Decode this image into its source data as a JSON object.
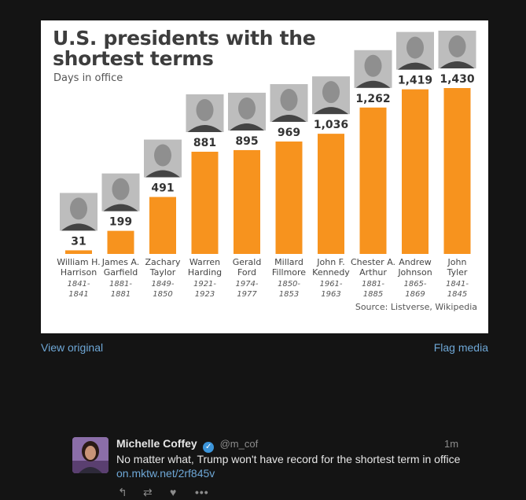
{
  "media": {
    "view_original": "View original",
    "flag_media": "Flag media"
  },
  "chart_data": {
    "type": "bar",
    "title": "U.S. presidents with the shortest terms",
    "subtitle": "Days in office",
    "source": "Source: Listverse, Wikipedia",
    "bar_color": "#f7931e",
    "categories": [
      {
        "name1": "William H.",
        "name2": "Harrison",
        "years1": "1841-",
        "years2": "1841"
      },
      {
        "name1": "James A.",
        "name2": "Garfield",
        "years1": "1881-",
        "years2": "1881"
      },
      {
        "name1": "Zachary",
        "name2": "Taylor",
        "years1": "1849-",
        "years2": "1850"
      },
      {
        "name1": "Warren",
        "name2": "Harding",
        "years1": "1921-",
        "years2": "1923"
      },
      {
        "name1": "Gerald",
        "name2": "Ford",
        "years1": "1974-",
        "years2": "1977"
      },
      {
        "name1": "Millard",
        "name2": "Fillmore",
        "years1": "1850-",
        "years2": "1853"
      },
      {
        "name1": "John F.",
        "name2": "Kennedy",
        "years1": "1961-",
        "years2": "1963"
      },
      {
        "name1": "Chester A.",
        "name2": "Arthur",
        "years1": "1881-",
        "years2": "1885"
      },
      {
        "name1": "Andrew",
        "name2": "Johnson",
        "years1": "1865-",
        "years2": "1869"
      },
      {
        "name1": "John",
        "name2": "Tyler",
        "years1": "1841-",
        "years2": "1845"
      }
    ],
    "values": [
      31,
      199,
      491,
      881,
      895,
      969,
      1036,
      1262,
      1419,
      1430
    ],
    "value_labels": [
      "31",
      "199",
      "491",
      "881",
      "895",
      "969",
      "1,036",
      "1,262",
      "1,419",
      "1,430"
    ],
    "ylim": [
      0,
      1430
    ]
  },
  "tweet": {
    "name": "Michelle Coffey",
    "verified_icon": "verified-badge-icon",
    "handle": "@m_cof",
    "time": "1m",
    "text": "No matter what, Trump won't have record for the shortest term in office",
    "link": "on.mktw.net/2rf845v",
    "actions": {
      "reply_icon": "reply-icon",
      "retweet_icon": "retweet-icon",
      "like_icon": "heart-icon",
      "more_icon": "more-icon"
    }
  }
}
